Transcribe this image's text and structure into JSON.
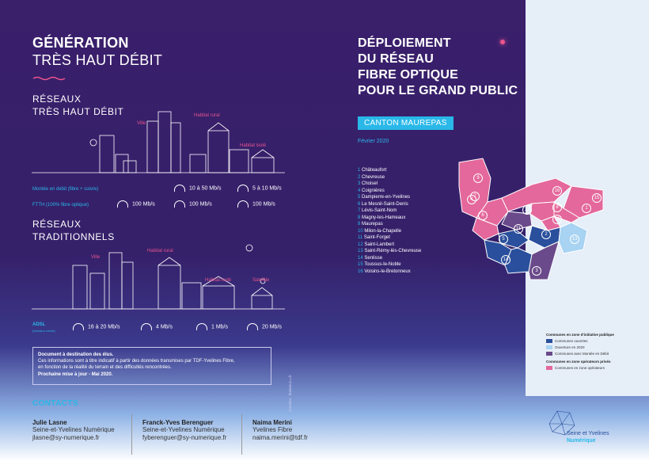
{
  "left": {
    "title_bold": "GÉNÉRATION",
    "title_light": "TRÈS HAUT DÉBIT",
    "section1_line1": "RÉSEAUX",
    "section1_line2": "TRÈS HAUT DÉBIT",
    "section2_line1": "RÉSEAUX",
    "section2_line2": "TRADITIONNELS",
    "labels": {
      "ville": "Ville",
      "habitat_rural": "Habitat rural",
      "habitat_isole": "Habitat isolé",
      "satellite": "Satellite"
    },
    "rows_thd": [
      {
        "label": "Montée en débit (fibre + cuivre)",
        "speeds": [
          "10 à 50 Mb/s",
          "5 à 10 Mb/s"
        ]
      },
      {
        "label": "FTTH (100% fibre optique)",
        "speeds": [
          "100 Mb/s",
          "100 Mb/s",
          "100 Mb/s"
        ]
      }
    ],
    "adsl": {
      "label": "ADSL",
      "sublabel": "(réseaux cuivre)",
      "speeds": [
        "16 à 20 Mb/s",
        "4 Mb/s",
        "1 Mb/s",
        "20 Mb/s"
      ]
    },
    "notice": [
      "Document à destination des élus.",
      "Ces informations sont à titre indicatif à partir des données transmises par TDF-Yvelines Fibre,",
      "en fonction de la réalité du terrain et des difficultés rencontrées.",
      "Prochaine mise à jour - Mai 2020."
    ],
    "credit": "Création : thalamus.u.fr"
  },
  "right": {
    "title": [
      "DÉPLOIEMENT",
      "DU RÉSEAU",
      "FIBRE OPTIQUE",
      "POUR LE GRAND PUBLIC"
    ],
    "canton": "CANTON MAUREPAS",
    "date": "Février 2020",
    "communes": [
      {
        "n": "1",
        "name": "Châteaufort"
      },
      {
        "n": "2",
        "name": "Chevreuse"
      },
      {
        "n": "3",
        "name": "Choisel"
      },
      {
        "n": "4",
        "name": "Coignières"
      },
      {
        "n": "5",
        "name": "Dampierre-en-Yvelines"
      },
      {
        "n": "6",
        "name": "Le Mesnil-Saint-Denis"
      },
      {
        "n": "7",
        "name": "Lévis-Saint-Nom"
      },
      {
        "n": "8",
        "name": "Magny-les-Hameaux"
      },
      {
        "n": "9",
        "name": "Maurepas"
      },
      {
        "n": "10",
        "name": "Milon-la-Chapelle"
      },
      {
        "n": "11",
        "name": "Saint-Forget"
      },
      {
        "n": "12",
        "name": "Saint-Lambert"
      },
      {
        "n": "13",
        "name": "Saint-Rémy-lès-Chevreuse"
      },
      {
        "n": "14",
        "name": "Senlisse"
      },
      {
        "n": "15",
        "name": "Toussus-le-Noble"
      },
      {
        "n": "16",
        "name": "Voisins-le-Bretonneux"
      }
    ],
    "legend": {
      "group1": "Communes en zone d'initiative publique",
      "items1": [
        {
          "label": "Communes ouvertes",
          "color": "#2a4f9c"
        },
        {
          "label": "Ouverture en 2020",
          "color": "#a8d3f2"
        },
        {
          "label": "Communes avec Montée en Débit",
          "color": "#6a4a8a"
        }
      ],
      "group2": "Communes en zone opérateurs privés",
      "items2": [
        {
          "label": "Communes en zone opérateurs",
          "color": "#e4689b"
        }
      ]
    },
    "logo": {
      "line1": "Seine et Yvelines",
      "line2": "Numérique"
    }
  },
  "contacts": {
    "heading": "CONTACTS",
    "people": [
      {
        "name": "Julie Lasne",
        "org": "Seine-et-Yvelines Numérique",
        "email": "jlasne@sy-numerique.fr"
      },
      {
        "name": "Franck-Yves Berenguer",
        "org": "Seine-et-Yvelines Numérique",
        "email": "fyberenguer@sy-numerique.fr"
      },
      {
        "name": "Naima Merini",
        "org": "Yvelines Fibre",
        "email": "naima.merini@tdf.fr"
      }
    ]
  },
  "colors": {
    "background": "#35206a",
    "accent_pink": "#e8548d",
    "accent_cyan": "#29b8e8",
    "open": "#2a4f9c",
    "opening_2020": "#a8d3f2",
    "montee_debit": "#6a4a8a",
    "private": "#e4689b"
  }
}
